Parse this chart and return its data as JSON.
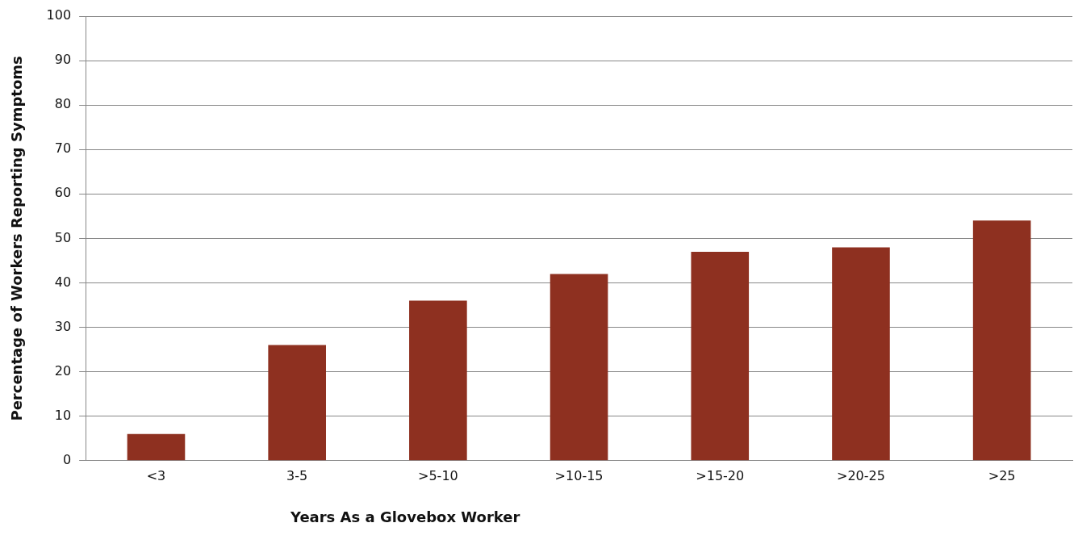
{
  "chart_data": {
    "type": "bar",
    "xlabel": "Years As a Glovebox Worker",
    "ylabel": "Percentage of Workers Reporting Symptoms",
    "categories": [
      "<3",
      "3-5",
      ">5-10",
      ">10-15",
      ">15-20",
      ">20-25",
      ">25"
    ],
    "values": [
      6,
      26,
      36,
      42,
      47,
      48,
      54
    ],
    "color": "#8e3020",
    "ylim": [
      0,
      100
    ],
    "yticks": [
      0,
      10,
      20,
      30,
      40,
      50,
      60,
      70,
      80,
      90,
      100
    ],
    "grid": "y",
    "legend": false
  }
}
